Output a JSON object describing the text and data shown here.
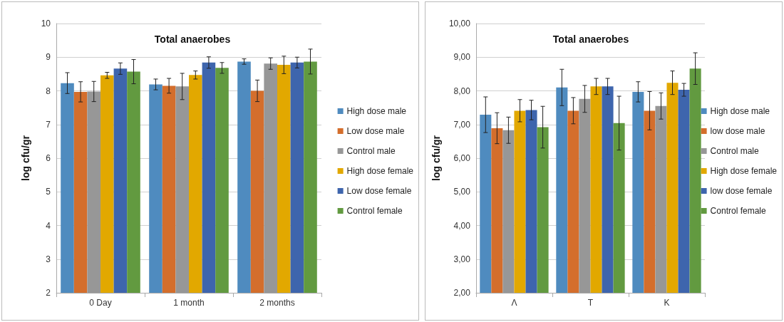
{
  "chart_data": [
    {
      "type": "bar",
      "title": "Total anaerobes",
      "ylabel": "log cfu/gr",
      "categories": [
        "0 Day",
        "1 month",
        "2 months"
      ],
      "series": [
        {
          "name": "High dose male",
          "color": "#4f8bbf",
          "values": [
            8.23,
            8.19,
            8.87
          ],
          "errors": [
            0.31,
            0.16,
            0.08
          ]
        },
        {
          "name": "Low dose male",
          "color": "#d46e2c",
          "values": [
            7.97,
            8.15,
            8.0
          ],
          "errors": [
            0.3,
            0.22,
            0.32
          ]
        },
        {
          "name": "Control male",
          "color": "#979797",
          "values": [
            7.98,
            8.13,
            8.81
          ],
          "errors": [
            0.3,
            0.39,
            0.17
          ]
        },
        {
          "name": "High dose female",
          "color": "#e2a800",
          "values": [
            8.46,
            8.47,
            8.77
          ],
          "errors": [
            0.09,
            0.12,
            0.26
          ]
        },
        {
          "name": "Low dose female",
          "color": "#3e65ad",
          "values": [
            8.66,
            8.84,
            8.84
          ],
          "errors": [
            0.17,
            0.17,
            0.16
          ]
        },
        {
          "name": "Control female",
          "color": "#629a40",
          "values": [
            8.57,
            8.68,
            8.87
          ],
          "errors": [
            0.36,
            0.16,
            0.37
          ]
        }
      ],
      "ylim": [
        2,
        10
      ],
      "yticks": [
        2,
        3,
        4,
        5,
        6,
        7,
        8,
        9,
        10
      ],
      "grid": "y",
      "legend": "right"
    },
    {
      "type": "bar",
      "title": "Total anaerobes",
      "ylabel": "log cfu/gr",
      "categories": [
        "Λ",
        "T",
        "K"
      ],
      "series": [
        {
          "name": "High dose male",
          "color": "#4f8bbf",
          "values": [
            7.29,
            8.1,
            7.97
          ],
          "errors": [
            0.53,
            0.54,
            0.3
          ]
        },
        {
          "name": "low dose male",
          "color": "#d46e2c",
          "values": [
            6.89,
            7.41,
            7.41
          ],
          "errors": [
            0.46,
            0.39,
            0.57
          ]
        },
        {
          "name": "Control male",
          "color": "#979797",
          "values": [
            6.83,
            7.76,
            7.55
          ],
          "errors": [
            0.39,
            0.4,
            0.39
          ]
        },
        {
          "name": "High dose female",
          "color": "#e2a800",
          "values": [
            7.41,
            8.13,
            8.24
          ],
          "errors": [
            0.33,
            0.24,
            0.35
          ]
        },
        {
          "name": "low dose female",
          "color": "#3e65ad",
          "values": [
            7.43,
            8.13,
            8.03
          ],
          "errors": [
            0.29,
            0.24,
            0.19
          ]
        },
        {
          "name": "Control female",
          "color": "#629a40",
          "values": [
            6.92,
            7.04,
            8.66
          ],
          "errors": [
            0.62,
            0.8,
            0.47
          ]
        }
      ],
      "ylim": [
        2,
        10
      ],
      "yticks": [
        {
          "value": 2,
          "label": "2,00"
        },
        {
          "value": 3,
          "label": "3,00"
        },
        {
          "value": 4,
          "label": "4,00"
        },
        {
          "value": 5,
          "label": "5,00"
        },
        {
          "value": 6,
          "label": "6,00"
        },
        {
          "value": 7,
          "label": "7,00"
        },
        {
          "value": 8,
          "label": "8,00"
        },
        {
          "value": 9,
          "label": "9,00"
        },
        {
          "value": 10,
          "label": "10,00"
        }
      ],
      "grid": "y",
      "legend": "right"
    }
  ]
}
